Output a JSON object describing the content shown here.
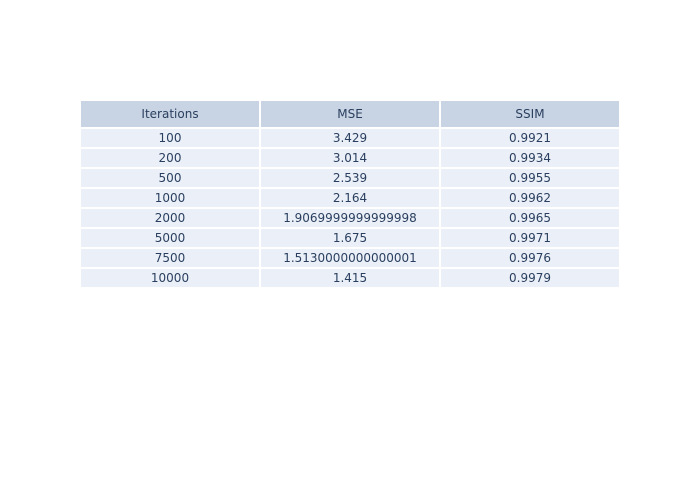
{
  "chart_data": {
    "type": "table",
    "columns": [
      "Iterations",
      "MSE",
      "SSIM"
    ],
    "rows": [
      [
        "100",
        "3.429",
        "0.9921"
      ],
      [
        "200",
        "3.014",
        "0.9934"
      ],
      [
        "500",
        "2.539",
        "0.9955"
      ],
      [
        "1000",
        "2.164",
        "0.9962"
      ],
      [
        "2000",
        "1.9069999999999998",
        "0.9965"
      ],
      [
        "5000",
        "1.675",
        "0.9971"
      ],
      [
        "7500",
        "1.5130000000000001",
        "0.9976"
      ],
      [
        "10000",
        "1.415",
        "0.9979"
      ]
    ],
    "colors": {
      "header_fill": "#c8d4e3",
      "cell_fill": "#ebf0f8",
      "line": "#ffffff",
      "font": "#2a3f5f"
    }
  }
}
